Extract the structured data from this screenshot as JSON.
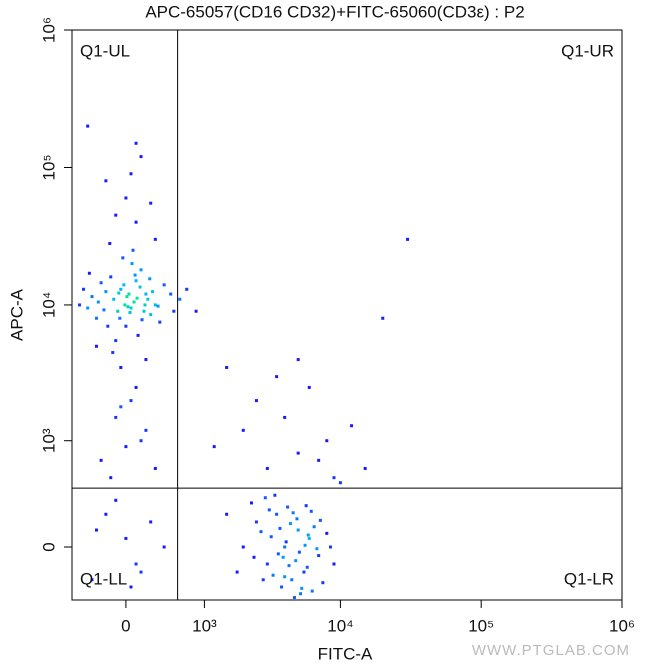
{
  "chart_data": {
    "type": "scatter",
    "scale": "biexponential",
    "title": "APC-65057(CD16 CD32)+FITC-65060(CD3ε) : P2",
    "xlabel": "FITC-A",
    "ylabel": "APC-A",
    "watermark": "WWW.PTGLAB.COM",
    "xlim": [
      -600,
      1000000
    ],
    "ylim": [
      -350,
      1000000
    ],
    "xticks": [
      0,
      {
        "value": 1000,
        "label": "10³"
      },
      {
        "value": 10000,
        "label": "10⁴"
      },
      {
        "value": 100000,
        "label": "10⁵"
      },
      {
        "value": 1000000,
        "label": "10⁶"
      }
    ],
    "yticks": [
      0,
      {
        "value": 1000,
        "label": "10³"
      },
      {
        "value": 10000,
        "label": "10⁴"
      },
      {
        "value": 100000,
        "label": "10⁵"
      },
      {
        "value": 1000000,
        "label": "10⁶"
      }
    ],
    "gates": {
      "x": 570,
      "y": 400
    },
    "quadrant_labels": [
      "Q1-UL",
      "Q1-UR",
      "Q1-LL",
      "Q1-LR"
    ],
    "colormap": [
      "#1a1aff",
      "#00b4ff",
      "#00e890"
    ],
    "x": [
      -120,
      50,
      200,
      -300,
      100,
      -50,
      300,
      0,
      150,
      -200,
      80,
      -80,
      250,
      -350,
      400,
      -150,
      120,
      30,
      -10,
      180,
      -250,
      350,
      60,
      -400,
      220,
      -60,
      10,
      140,
      -180,
      90,
      -30,
      270,
      -100,
      190,
      -280,
      40,
      -20,
      330,
      110,
      -220,
      480,
      -450,
      70,
      -130,
      160,
      520,
      -500,
      240,
      -70,
      20,
      600,
      700,
      850,
      -380,
      300,
      -160,
      100,
      -50,
      200,
      -300,
      0,
      -200,
      150,
      -400,
      100,
      250,
      -100,
      50,
      50,
      -100,
      200,
      0,
      -250,
      300,
      100,
      -50,
      150,
      -150,
      -200,
      100,
      0,
      -350,
      250,
      -100,
      50,
      400,
      -300,
      150,
      4000,
      5000,
      3000,
      6000,
      3500,
      4500,
      7000,
      2500,
      5500,
      4200,
      3800,
      6500,
      2000,
      8000,
      4800,
      3200,
      5200,
      2800,
      6200,
      3600,
      4400,
      5800,
      2300,
      7500,
      4100,
      4900,
      3300,
      5600,
      2700,
      6800,
      3900,
      4600,
      5300,
      3100,
      4300,
      5900,
      2400,
      7200,
      3700,
      5100,
      8500,
      1800,
      1500,
      9000,
      4700,
      3400,
      6300,
      2900,
      5700,
      4000,
      3000,
      5000,
      2000,
      7000,
      4000,
      6000,
      8000,
      3500,
      5000,
      2500,
      9000,
      10000,
      1200,
      15000,
      30000,
      20000,
      12000,
      1500
    ],
    "values": [
      11000,
      9500,
      12000,
      8000,
      15000,
      13000,
      10000,
      7000,
      18000,
      12500,
      10500,
      9000,
      8500,
      11500,
      14000,
      16000,
      6000,
      12000,
      10000,
      9000,
      14500,
      7500,
      20000,
      9500,
      11000,
      8000,
      11500,
      13500,
      7000,
      16500,
      22000,
      12500,
      5500,
      10000,
      10500,
      8800,
      14000,
      9800,
      11200,
      9200,
      12000,
      13000,
      25000,
      4500,
      7800,
      9000,
      10000,
      15500,
      12200,
      9700,
      11000,
      13000,
      9000,
      17000,
      30000,
      28000,
      40000,
      3500,
      4000,
      5000,
      60000,
      80000,
      120000,
      200000,
      150000,
      55000,
      45000,
      90000,
      2000,
      1500,
      1200,
      900,
      700,
      600,
      2500,
      1800,
      1000,
      500,
      200,
      -100,
      50,
      -200,
      150,
      300,
      -250,
      0,
      100,
      -150,
      0,
      100,
      -100,
      50,
      200,
      -200,
      -50,
      150,
      -150,
      250,
      -250,
      120,
      0,
      80,
      -80,
      60,
      -300,
      -200,
      220,
      -40,
      140,
      -120,
      280,
      -220,
      30,
      170,
      -170,
      10,
      90,
      -10,
      -60,
      210,
      -260,
      230,
      -110,
      70,
      -60,
      160,
      110,
      -30,
      0,
      -150,
      200,
      -100,
      -330,
      340,
      -280,
      320,
      260,
      -180,
      600,
      800,
      1200,
      700,
      1500,
      2500,
      1000,
      3000,
      4000,
      2000,
      500,
      450,
      900,
      600,
      30000,
      8000,
      1300,
      3500
    ]
  }
}
